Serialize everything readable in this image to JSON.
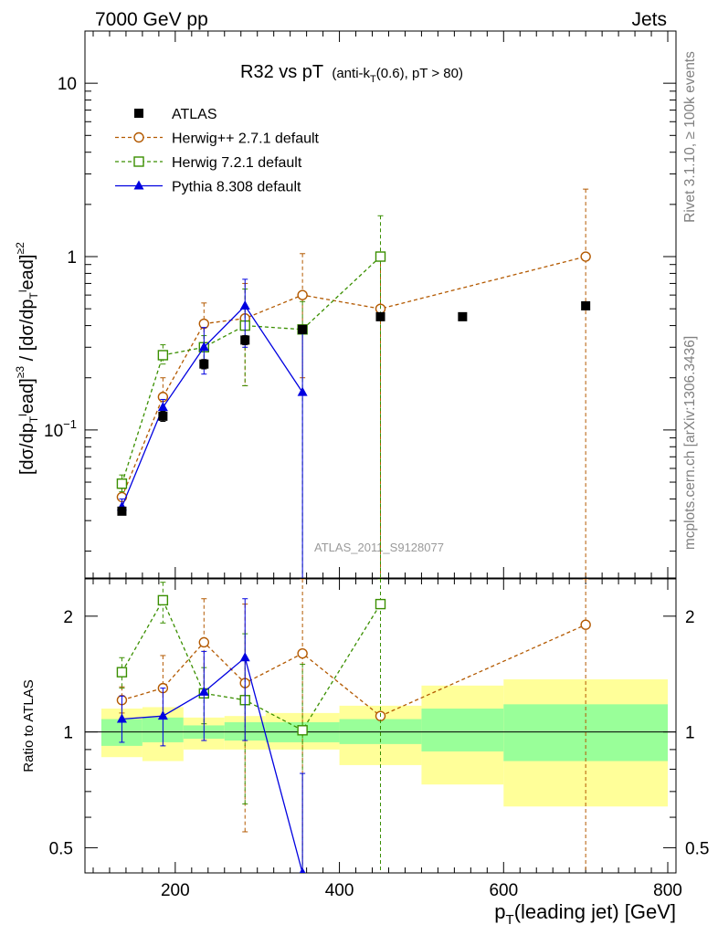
{
  "header": {
    "left": "7000 GeV pp",
    "right": "Jets"
  },
  "side_labels": {
    "rivet": "Rivet 3.1.10, ≥ 100k events",
    "mcplots": "mcplots.cern.ch [arXiv:1306.3436]"
  },
  "chart_data": {
    "type": "scatter",
    "title": "R32 vs pT",
    "title_suffix": "(anti-k",
    "title_sub": "T",
    "title_tail": "(0.6), pT > 80)",
    "watermark": "ATLAS_2011_S9128077",
    "xlabel": "p",
    "xlabel_sub": "T",
    "xlabel_tail": "(leading jet) [GeV]",
    "ylabel_main": "[dσ/dp",
    "ylabel_parts": [
      "T",
      "l",
      "ead]",
      "≥3",
      " / [dσ/dp",
      "T",
      "l",
      "ead]",
      "≥2"
    ],
    "ylabel_ratio": "Ratio to ATLAS",
    "xlim": [
      90,
      810
    ],
    "ylim_main": [
      0.014,
      20
    ],
    "ylim_ratio": [
      0.43,
      2.5
    ],
    "log_y_main": true,
    "log_y_ratio": true,
    "x_ticks": [
      "200",
      "400",
      "600",
      "800"
    ],
    "y_ticks_main": [
      "10",
      "1"
    ],
    "y_tick_main_exp": {
      "base": "10",
      "exp": "−1"
    },
    "y_ticks_ratio": [
      "2",
      "1",
      "0.5"
    ],
    "bins": [
      [
        110,
        160
      ],
      [
        160,
        210
      ],
      [
        210,
        260
      ],
      [
        260,
        310
      ],
      [
        310,
        400
      ],
      [
        400,
        500
      ],
      [
        500,
        600
      ],
      [
        600,
        800
      ]
    ],
    "band_inner": [
      [
        0.92,
        1.08
      ],
      [
        0.94,
        1.09
      ],
      [
        0.96,
        1.04
      ],
      [
        0.95,
        1.06
      ],
      [
        0.94,
        1.06
      ],
      [
        0.93,
        1.08
      ],
      [
        0.89,
        1.15
      ],
      [
        0.84,
        1.18
      ]
    ],
    "band_outer": [
      [
        0.86,
        1.15
      ],
      [
        0.84,
        1.16
      ],
      [
        0.9,
        1.09
      ],
      [
        0.9,
        1.1
      ],
      [
        0.9,
        1.12
      ],
      [
        0.82,
        1.17
      ],
      [
        0.73,
        1.32
      ],
      [
        0.64,
        1.37
      ]
    ],
    "series": [
      {
        "name": "ATLAS",
        "color": "#000000",
        "marker": "square-filled",
        "dash": false,
        "line": false,
        "x": [
          135,
          185,
          235,
          285,
          355,
          450,
          550,
          700
        ],
        "y": [
          0.034,
          0.12,
          0.24,
          0.33,
          0.38,
          0.45,
          0.45,
          0.52
        ],
        "err": [
          [
            0.0325,
            0.0355
          ],
          [
            0.112,
            0.128
          ],
          [
            0.225,
            0.255
          ],
          [
            0.31,
            0.35
          ],
          [
            0.36,
            0.4
          ],
          [
            0.43,
            0.47
          ],
          [
            0.43,
            0.47
          ],
          [
            0.5,
            0.54
          ]
        ],
        "ratio": [],
        "ratio_err": []
      },
      {
        "name": "Herwig++ 2.7.1 default",
        "color": "#b35900",
        "marker": "circle-open",
        "dash": true,
        "line": true,
        "x": [
          135,
          185,
          235,
          285,
          355,
          450,
          700
        ],
        "y": [
          0.041,
          0.155,
          0.41,
          0.44,
          0.6,
          0.5,
          1.0
        ],
        "err": [
          [
            0.036,
            0.046
          ],
          [
            0.13,
            0.2
          ],
          [
            0.3,
            0.54
          ],
          [
            0.18,
            0.7
          ],
          [
            0.2,
            1.04
          ],
          [
            0.008,
            1.0
          ],
          [
            0.008,
            2.45
          ]
        ],
        "ratio": [
          1.21,
          1.3,
          1.71,
          1.34,
          1.6,
          1.1,
          1.9
        ],
        "ratio_err": [
          [
            1.12,
            1.31
          ],
          [
            1.1,
            1.58
          ],
          [
            1.25,
            2.22
          ],
          [
            0.55,
            2.15
          ],
          [
            0.3,
            2.5
          ],
          [
            0.3,
            2.5
          ],
          [
            0.3,
            2.5
          ]
        ]
      },
      {
        "name": "Herwig 7.2.1 default",
        "color": "#3a8f00",
        "marker": "square-open",
        "dash": true,
        "line": true,
        "x": [
          135,
          185,
          235,
          285,
          355,
          450
        ],
        "y": [
          0.049,
          0.27,
          0.3,
          0.4,
          0.38,
          1.0
        ],
        "err": [
          [
            0.044,
            0.055
          ],
          [
            0.24,
            0.31
          ],
          [
            0.25,
            0.35
          ],
          [
            0.18,
            0.65
          ],
          [
            0.008,
            0.55
          ],
          [
            0.008,
            1.72
          ]
        ],
        "ratio": [
          1.43,
          2.2,
          1.26,
          1.21,
          1.01,
          2.15
        ],
        "ratio_err": [
          [
            1.3,
            1.56
          ],
          [
            1.92,
            2.45
          ],
          [
            1.05,
            1.47
          ],
          [
            0.65,
            1.8
          ],
          [
            0.3,
            1.5
          ],
          [
            0.3,
            2.5
          ]
        ]
      },
      {
        "name": "Pythia 8.308 default",
        "color": "#0000e0",
        "marker": "triangle-filled",
        "dash": false,
        "line": true,
        "x": [
          135,
          185,
          235,
          285,
          355
        ],
        "y": [
          0.036,
          0.135,
          0.3,
          0.52,
          0.165
        ],
        "err": [
          [
            0.033,
            0.04
          ],
          [
            0.12,
            0.15
          ],
          [
            0.21,
            0.39
          ],
          [
            0.3,
            0.74
          ],
          [
            0.008,
            0.4
          ]
        ],
        "ratio": [
          1.08,
          1.1,
          1.27,
          1.56,
          0.43
        ],
        "ratio_err": [
          [
            0.94,
            1.24
          ],
          [
            0.92,
            1.3
          ],
          [
            0.95,
            1.62
          ],
          [
            0.95,
            2.22
          ],
          [
            0.3,
            0.78
          ]
        ]
      }
    ]
  }
}
